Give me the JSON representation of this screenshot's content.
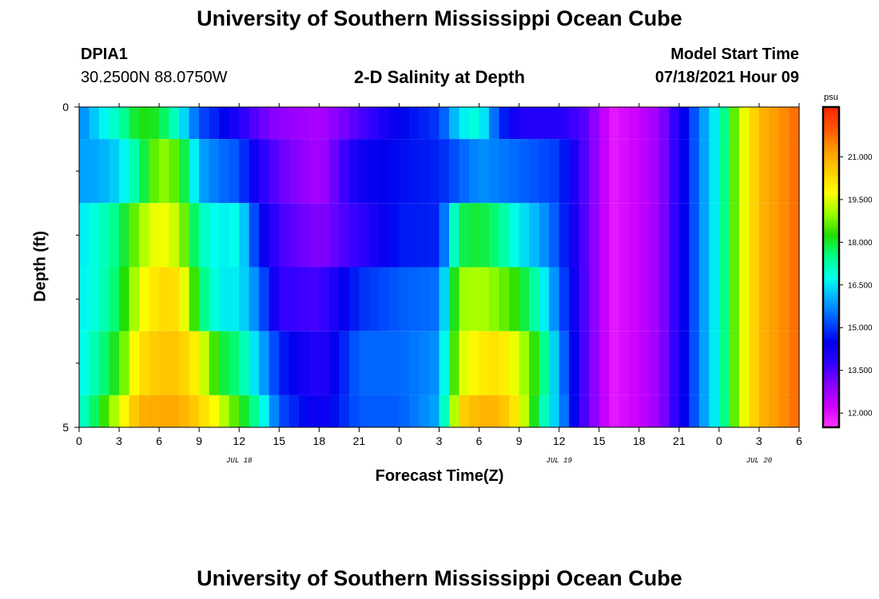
{
  "page": {
    "title_top": "University of Southern Mississippi Ocean Cube",
    "title_bottom": "University of Southern Mississippi Ocean Cube",
    "station": "DPIA1",
    "coords": "30.2500N  88.0750W",
    "plot_title": "2-D Salinity at Depth",
    "model_start_label": "Model Start Time",
    "model_start_value": "07/18/2021 Hour 09"
  },
  "colors": {
    "palette": [
      "#ff33ff",
      "#cc00ff",
      "#8800ff",
      "#3300ff",
      "#0000ee",
      "#0055ff",
      "#00aaff",
      "#00ffee",
      "#00ff88",
      "#22dd00",
      "#99ff00",
      "#ffff00",
      "#ffcc00",
      "#ff9900",
      "#ff5500",
      "#ff2200"
    ]
  },
  "chart_data": {
    "type": "heatmap",
    "title": "2-D Salinity at Depth",
    "xlabel": "Forecast Time(Z)",
    "ylabel": "Depth (ft)",
    "x_tick_labels": [
      "0",
      "3",
      "6",
      "9",
      "12",
      "15",
      "18",
      "21",
      "0",
      "3",
      "6",
      "9",
      "12",
      "15",
      "18",
      "21",
      "0",
      "3",
      "6"
    ],
    "x_range_hours": [
      0,
      54
    ],
    "date_labels": [
      {
        "text": "JUL 18",
        "hour": 12
      },
      {
        "text": "JUL 19",
        "hour": 36
      },
      {
        "text": "JUL 20",
        "hour": 51
      }
    ],
    "y_tick_labels": [
      "0",
      "5"
    ],
    "y_range": [
      0,
      5
    ],
    "y_minor_ticks": [
      1,
      2,
      3,
      4
    ],
    "colorbar": {
      "unit": "psu",
      "range": [
        11.5,
        22.75
      ],
      "labels": [
        "21.000",
        "19.500",
        "18.000",
        "16.500",
        "15.000",
        "13.500",
        "12.000"
      ],
      "label_values": [
        21.0,
        19.5,
        18.0,
        16.5,
        15.0,
        13.5,
        12.0
      ]
    },
    "depth_levels": [
      0.25,
      1.0,
      2.0,
      3.0,
      4.0,
      4.75
    ],
    "depth_band_edges": [
      0,
      0.5,
      1.5,
      2.5,
      3.5,
      4.5,
      5
    ],
    "keyframes": [
      {
        "hour": 0,
        "values": [
          15.6,
          15.9,
          16.5,
          16.6,
          16.6,
          16.8
        ]
      },
      {
        "hour": 1.5,
        "values": [
          16.5,
          16.0,
          17.0,
          17.0,
          17.4,
          18.0
        ]
      },
      {
        "hour": 3,
        "values": [
          17.2,
          16.4,
          17.6,
          17.8,
          18.3,
          19.5
        ]
      },
      {
        "hour": 4.5,
        "values": [
          18.2,
          17.5,
          19.0,
          19.5,
          20.2,
          20.9
        ]
      },
      {
        "hour": 6,
        "values": [
          18.0,
          19.0,
          19.8,
          20.3,
          20.6,
          21.0
        ]
      },
      {
        "hour": 7.5,
        "values": [
          16.8,
          18.5,
          19.2,
          20.2,
          20.6,
          21.0
        ]
      },
      {
        "hour": 9,
        "values": [
          15.2,
          16.0,
          17.2,
          17.8,
          19.8,
          20.4
        ]
      },
      {
        "hour": 10.5,
        "values": [
          14.7,
          15.5,
          16.6,
          16.6,
          18.0,
          19.5
        ]
      },
      {
        "hour": 12,
        "values": [
          14.0,
          15.2,
          16.8,
          16.6,
          17.5,
          18.3
        ]
      },
      {
        "hour": 13.5,
        "values": [
          13.3,
          14.0,
          14.6,
          15.5,
          16.2,
          17.2
        ]
      },
      {
        "hour": 15,
        "values": [
          12.9,
          13.3,
          13.6,
          13.8,
          14.8,
          15.2
        ]
      },
      {
        "hour": 18,
        "values": [
          12.6,
          12.6,
          13.0,
          13.6,
          13.9,
          14.2
        ]
      },
      {
        "hour": 21,
        "values": [
          13.5,
          14.3,
          13.8,
          14.9,
          15.4,
          15.3
        ]
      },
      {
        "hour": 24,
        "values": [
          14.5,
          14.6,
          14.7,
          15.3,
          15.4,
          15.3
        ]
      },
      {
        "hour": 27,
        "values": [
          15.0,
          14.8,
          14.8,
          15.5,
          15.8,
          16.0
        ]
      },
      {
        "hour": 28.5,
        "values": [
          16.5,
          15.3,
          17.8,
          19.0,
          19.4,
          20.3
        ]
      },
      {
        "hour": 30,
        "values": [
          17.0,
          15.8,
          18.0,
          19.2,
          20.0,
          20.9
        ]
      },
      {
        "hour": 31.5,
        "values": [
          15.0,
          15.6,
          17.5,
          18.8,
          20.2,
          20.8
        ]
      },
      {
        "hour": 33,
        "values": [
          14.0,
          15.4,
          16.6,
          18.2,
          19.4,
          19.9
        ]
      },
      {
        "hour": 34.5,
        "values": [
          14.0,
          15.2,
          16.0,
          17.0,
          18.0,
          17.5
        ]
      },
      {
        "hour": 36,
        "values": [
          14.0,
          15.0,
          15.1,
          15.4,
          15.8,
          16.0
        ]
      },
      {
        "hour": 38,
        "values": [
          13.4,
          13.4,
          13.4,
          13.4,
          13.4,
          13.4
        ]
      },
      {
        "hour": 40,
        "values": [
          11.9,
          11.9,
          11.9,
          11.9,
          11.9,
          11.9
        ]
      },
      {
        "hour": 42,
        "values": [
          12.3,
          12.3,
          12.3,
          12.3,
          12.3,
          12.3
        ]
      },
      {
        "hour": 43.5,
        "values": [
          12.8,
          12.8,
          12.8,
          12.8,
          12.8,
          12.8
        ]
      },
      {
        "hour": 45,
        "values": [
          14.1,
          14.1,
          14.1,
          14.1,
          14.1,
          14.1
        ]
      },
      {
        "hour": 46.5,
        "values": [
          15.6,
          15.6,
          15.6,
          15.6,
          15.6,
          15.6
        ]
      },
      {
        "hour": 48,
        "values": [
          16.9,
          16.9,
          16.9,
          16.9,
          16.9,
          16.9
        ]
      },
      {
        "hour": 49.5,
        "values": [
          19.2,
          19.2,
          19.2,
          19.2,
          19.2,
          19.2
        ]
      },
      {
        "hour": 51,
        "values": [
          20.8,
          20.8,
          20.8,
          20.8,
          20.8,
          20.8
        ]
      },
      {
        "hour": 54,
        "values": [
          21.8,
          21.8,
          21.8,
          21.8,
          21.8,
          21.8
        ]
      }
    ]
  }
}
